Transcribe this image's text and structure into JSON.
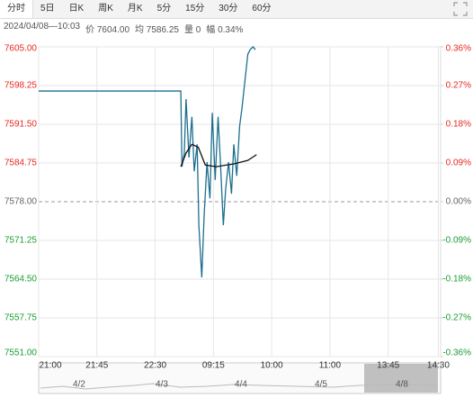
{
  "tabs": [
    "分时",
    "5日",
    "日K",
    "周K",
    "月K",
    "5分",
    "15分",
    "30分",
    "60分"
  ],
  "info": [
    "2024/04/08—10:03",
    "价 7604.00",
    "均 7586.25",
    "量 0",
    "幅 0.34%"
  ],
  "chart_data": {
    "type": "line",
    "xlim": [
      0,
      6.9
    ],
    "xticks": [
      {
        "value": 0,
        "label": "21:00"
      },
      {
        "value": 1,
        "label": "21:45"
      },
      {
        "value": 2,
        "label": "22:30"
      },
      {
        "value": 3,
        "label": "09:15"
      },
      {
        "value": 4,
        "label": "10:00"
      },
      {
        "value": 5,
        "label": "11:00"
      },
      {
        "value": 6,
        "label": "13:45"
      },
      {
        "value": 6.86,
        "label": "14:30"
      }
    ],
    "ylim": [
      7551,
      7605
    ],
    "yticks": [
      {
        "value": 7605,
        "label": "7605.00"
      },
      {
        "value": 7598.25,
        "label": "7598.25"
      },
      {
        "value": 7591.5,
        "label": "7591.50"
      },
      {
        "value": 7584.75,
        "label": "7584.75"
      },
      {
        "value": 7578,
        "label": "7578.00"
      },
      {
        "value": 7571.25,
        "label": "7571.25"
      },
      {
        "value": 7564.5,
        "label": "7564.50"
      },
      {
        "value": 7557.75,
        "label": "7557.75"
      },
      {
        "value": 7551,
        "label": "7551.00"
      }
    ],
    "y2lim": [
      -0.36,
      0.36
    ],
    "y2ticks": [
      {
        "value": 0.36,
        "label": "0.36%"
      },
      {
        "value": 0.27,
        "label": "0.27%"
      },
      {
        "value": 0.18,
        "label": "0.18%"
      },
      {
        "value": 0.09,
        "label": "0.09%"
      },
      {
        "value": 0,
        "label": "0.00%"
      },
      {
        "value": -0.09,
        "label": "-0.09%"
      },
      {
        "value": -0.18,
        "label": "-0.18%"
      },
      {
        "value": -0.27,
        "label": "-0.27%"
      },
      {
        "value": -0.36,
        "label": "-0.36%"
      }
    ],
    "base": 7578,
    "up_color": "#e8281f",
    "down_color": "#1a9e33",
    "flat_color": "#666666",
    "grid": true,
    "series": [
      {
        "color": "#1d6f8f",
        "x": [
          0,
          2.43,
          2.44,
          2.46,
          2.5,
          2.53,
          2.58,
          2.63,
          2.67,
          2.72,
          2.75,
          2.8,
          2.84,
          2.89,
          2.94,
          2.98,
          3.03,
          3.08,
          3.12,
          3.17,
          3.21,
          3.26,
          3.31,
          3.35,
          3.4,
          3.45,
          3.49,
          3.54,
          3.59,
          3.63,
          3.68,
          3.72
        ],
        "values": [
          7597.3,
          7597.3,
          7597.3,
          7584.1,
          7586.5,
          7595.9,
          7585.7,
          7592.8,
          7583.3,
          7588.0,
          7573.9,
          7564.8,
          7575.5,
          7584.9,
          7578.6,
          7593.5,
          7581.8,
          7592.8,
          7584.9,
          7573.9,
          7580.2,
          7584.9,
          7579.4,
          7588.0,
          7582.5,
          7591.2,
          7594.3,
          7599.0,
          7603.7,
          7604.5,
          7605.0,
          7604.5
        ]
      },
      {
        "color": "#111111",
        "x": [
          2.44,
          2.53,
          2.63,
          2.74,
          2.86,
          3.05,
          3.35,
          3.59,
          3.74
        ],
        "values": [
          7584.1,
          7586.5,
          7588.0,
          7587.5,
          7584.4,
          7584.1,
          7584.6,
          7585.2,
          7586.2
        ]
      }
    ]
  },
  "navigator": [
    "4/2",
    "4/3",
    "4/4",
    "4/5",
    "4/8"
  ]
}
